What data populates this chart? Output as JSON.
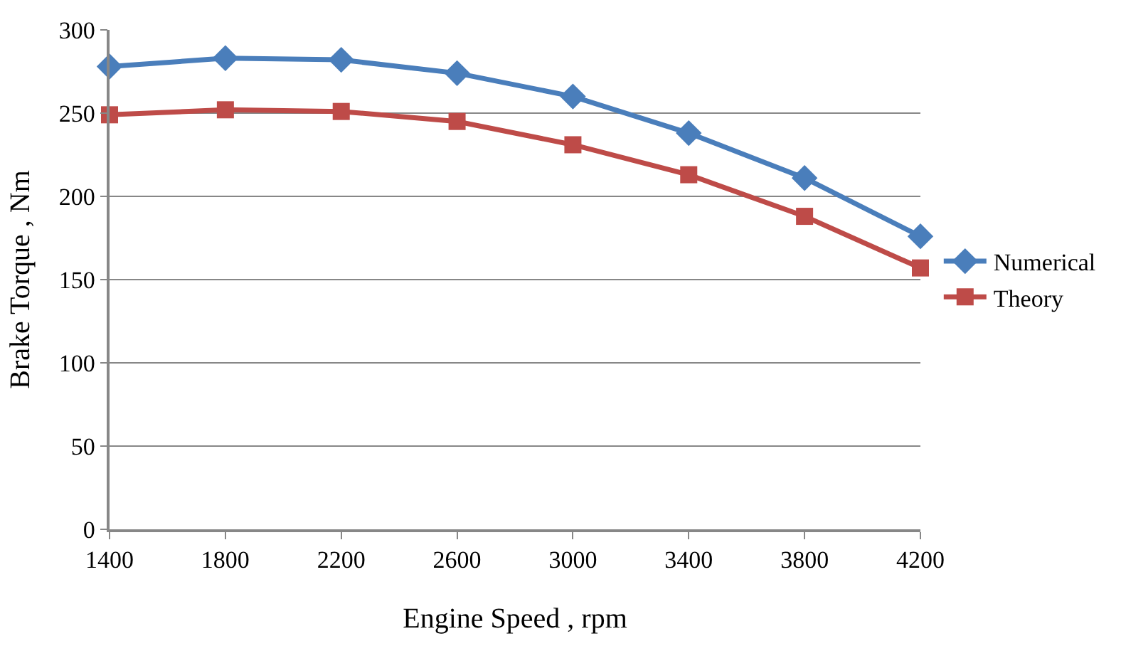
{
  "chart_data": {
    "type": "line",
    "xlabel": "Engine Speed , rpm",
    "ylabel": "Brake Torque , Nm",
    "x": [
      1400,
      1800,
      2200,
      2600,
      3000,
      3400,
      3800,
      4200
    ],
    "xlim": [
      1400,
      4200
    ],
    "xticks": [
      1400,
      1800,
      2200,
      2600,
      3000,
      3400,
      3800,
      4200
    ],
    "ylim": [
      0,
      300
    ],
    "yticks": [
      0,
      50,
      100,
      150,
      200,
      250,
      300
    ],
    "grid": "y",
    "legend": "right",
    "series": [
      {
        "name": "Numerical",
        "color": "#4a7ebb",
        "marker": "diamond",
        "values": [
          278,
          283,
          282,
          274,
          260,
          238,
          211,
          176
        ]
      },
      {
        "name": "Theory",
        "color": "#be4b48",
        "marker": "square",
        "values": [
          249,
          252,
          251,
          245,
          231,
          213,
          188,
          157
        ]
      }
    ]
  }
}
